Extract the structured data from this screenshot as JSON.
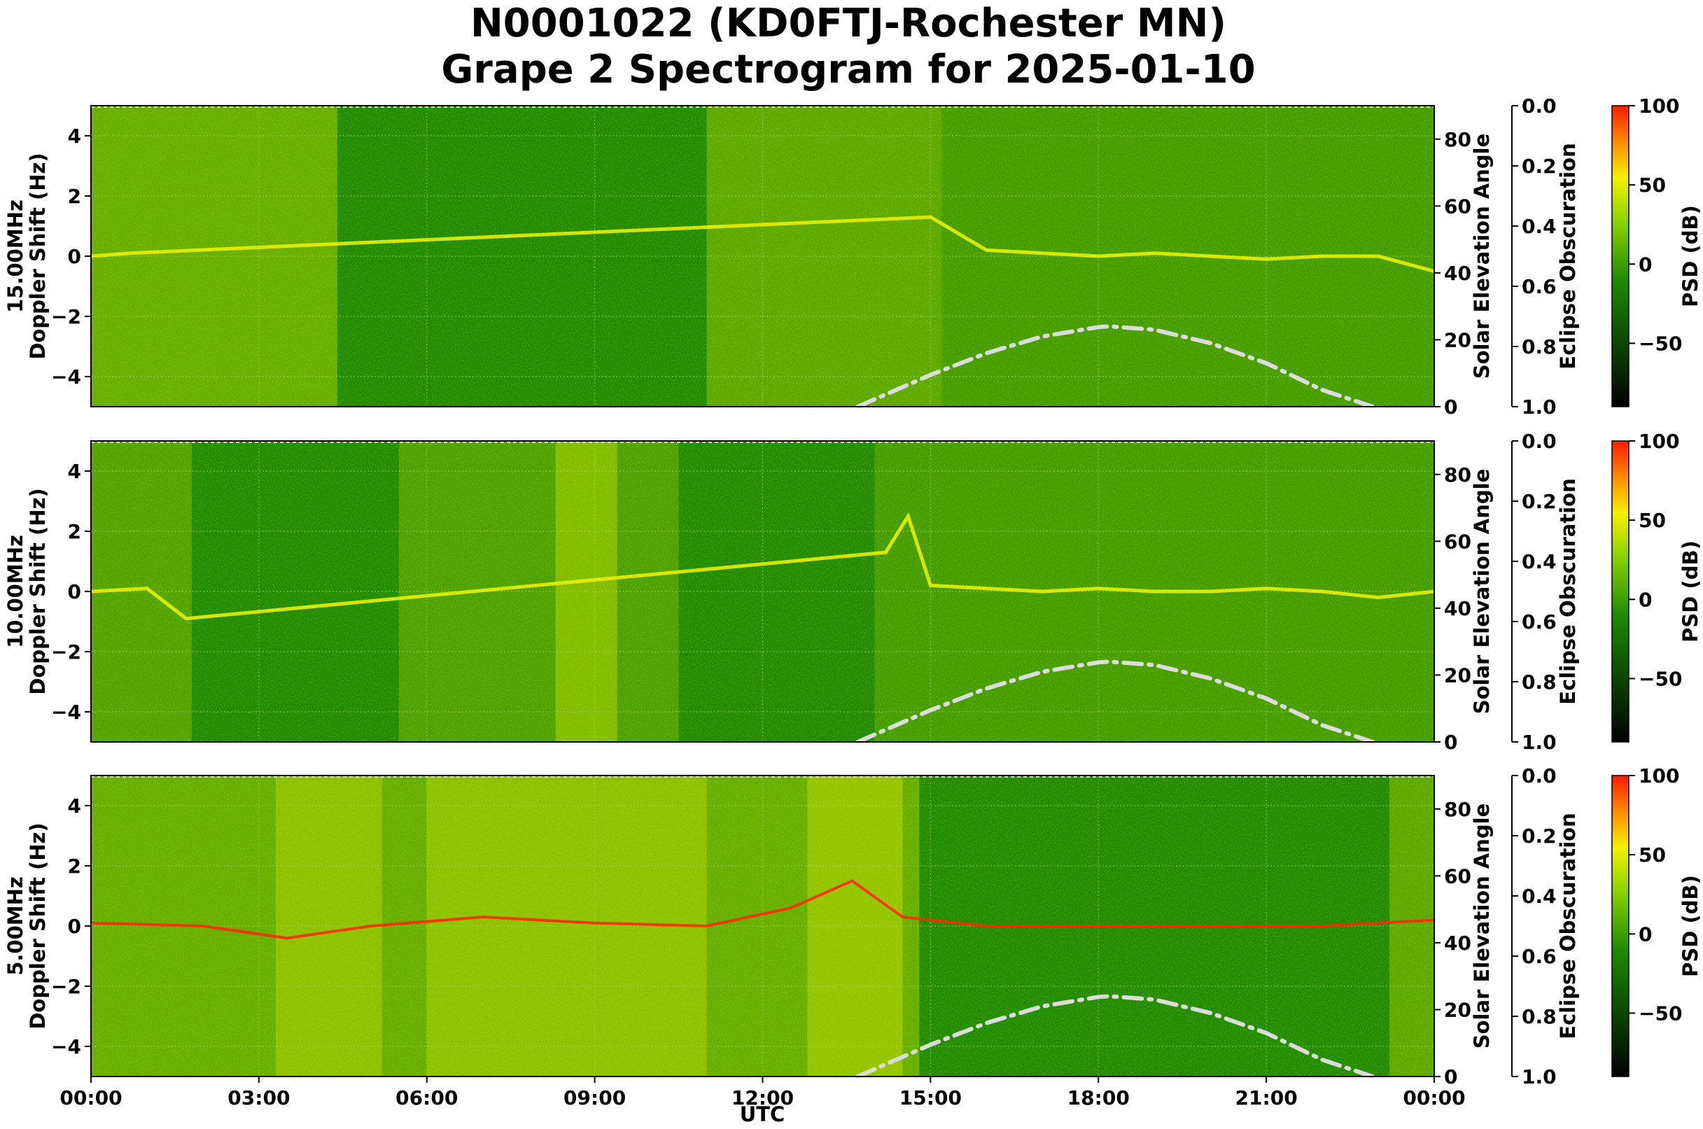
{
  "title_line1": "N0001022 (KD0FTJ-Rochester MN)",
  "title_line2": "Grape 2 Spectrogram for 2025-01-10",
  "xlabel": "UTC",
  "x_ticks": [
    "00:00",
    "03:00",
    "06:00",
    "09:00",
    "12:00",
    "15:00",
    "18:00",
    "21:00",
    "00:00"
  ],
  "colors": {
    "background_green": "#1f8a00",
    "noise_green": "#4c9f10",
    "signal_yellow": "#e8f000",
    "strong_red": "#ff2a00",
    "solar_curve": "#dcdcdc"
  },
  "chart_data": [
    {
      "type": "heatmap",
      "frequency_label": "15.00MHz",
      "ylabel": "15.00MHz\nDoppler Shift (Hz)",
      "ylabel_line1": "15.00MHz",
      "ylabel_line2": "Doppler Shift (Hz)",
      "ylim": [
        -5,
        5
      ],
      "y_ticks": [
        "4",
        "2",
        "0",
        "−2",
        "−4"
      ],
      "y_tick_values": [
        4,
        2,
        0,
        -2,
        -4
      ],
      "xlim_hours": [
        0,
        24
      ],
      "solar_axis_label": "Solar Elevation Angle",
      "solar_ylim": [
        0,
        90
      ],
      "solar_ticks": [
        "80",
        "60",
        "40",
        "20",
        "0"
      ],
      "solar_tick_values": [
        80,
        60,
        40,
        20,
        0
      ],
      "eclipse_label": "Eclipse Obscuration",
      "eclipse_ylim": [
        0,
        1
      ],
      "eclipse_ticks": [
        "0.0",
        "0.2",
        "0.4",
        "0.6",
        "0.8",
        "1.0"
      ],
      "eclipse_tick_values": [
        0,
        0.2,
        0.4,
        0.6,
        0.8,
        1.0
      ],
      "colorbar_label": "PSD (dB)",
      "colorbar_range": [
        -90,
        100
      ],
      "colorbar_ticks": [
        "100",
        "50",
        "0",
        "−50"
      ],
      "colorbar_tick_values": [
        100,
        50,
        0,
        -50
      ],
      "solar_elevation_curve": {
        "x_hours": [
          13.7,
          15,
          16,
          17,
          18,
          18.2,
          19,
          20,
          21,
          22,
          22.9
        ],
        "elev_deg": [
          0,
          9.5,
          16,
          21,
          23.8,
          24,
          23,
          19,
          13,
          5,
          0
        ]
      },
      "signal_trace": {
        "x_hours": [
          0,
          0.7,
          15.0,
          16,
          17,
          18,
          19,
          20,
          21,
          22,
          23,
          24
        ],
        "doppler_hz": [
          0,
          0.1,
          1.3,
          0.2,
          0.1,
          0,
          0.1,
          0,
          -0.1,
          0,
          0,
          -0.5
        ]
      }
    },
    {
      "type": "heatmap",
      "frequency_label": "10.00MHz",
      "ylabel": "10.00MHz\nDoppler Shift (Hz)",
      "ylabel_line1": "10.00MHz",
      "ylabel_line2": "Doppler Shift (Hz)",
      "ylim": [
        -5,
        5
      ],
      "y_ticks": [
        "4",
        "2",
        "0",
        "−2",
        "−4"
      ],
      "y_tick_values": [
        4,
        2,
        0,
        -2,
        -4
      ],
      "xlim_hours": [
        0,
        24
      ],
      "solar_axis_label": "Solar Elevation Angle",
      "solar_ylim": [
        0,
        90
      ],
      "solar_ticks": [
        "80",
        "60",
        "40",
        "20",
        "0"
      ],
      "solar_tick_values": [
        80,
        60,
        40,
        20,
        0
      ],
      "eclipse_label": "Eclipse Obscuration",
      "eclipse_ylim": [
        0,
        1
      ],
      "eclipse_ticks": [
        "0.0",
        "0.2",
        "0.4",
        "0.6",
        "0.8",
        "1.0"
      ],
      "eclipse_tick_values": [
        0,
        0.2,
        0.4,
        0.6,
        0.8,
        1.0
      ],
      "colorbar_label": "PSD (dB)",
      "colorbar_range": [
        -90,
        100
      ],
      "colorbar_ticks": [
        "100",
        "50",
        "0",
        "−50"
      ],
      "colorbar_tick_values": [
        100,
        50,
        0,
        -50
      ],
      "solar_elevation_curve": {
        "x_hours": [
          13.7,
          15,
          16,
          17,
          18,
          18.2,
          19,
          20,
          21,
          22,
          22.9
        ],
        "elev_deg": [
          0,
          9.5,
          16,
          21,
          23.8,
          24,
          23,
          19,
          13,
          5,
          0
        ]
      },
      "signal_trace": {
        "x_hours": [
          0,
          1.0,
          1.7,
          14.2,
          14.6,
          15,
          16,
          17,
          18,
          19,
          20,
          21,
          22,
          23,
          24
        ],
        "doppler_hz": [
          0,
          0.1,
          -0.9,
          1.3,
          2.5,
          0.2,
          0.1,
          0,
          0.1,
          0,
          0,
          0.1,
          0,
          -0.2,
          0
        ]
      }
    },
    {
      "type": "heatmap",
      "frequency_label": "5.00MHz",
      "ylabel": "5.00MHz\nDoppler Shift (Hz)",
      "ylabel_line1": "5.00MHz",
      "ylabel_line2": "Doppler Shift (Hz)",
      "ylim": [
        -5,
        5
      ],
      "y_ticks": [
        "4",
        "2",
        "0",
        "−2",
        "−4"
      ],
      "y_tick_values": [
        4,
        2,
        0,
        -2,
        -4
      ],
      "xlim_hours": [
        0,
        24
      ],
      "solar_axis_label": "Solar Elevation Angle",
      "solar_ylim": [
        0,
        90
      ],
      "solar_ticks": [
        "80",
        "60",
        "40",
        "20",
        "0"
      ],
      "solar_tick_values": [
        80,
        60,
        40,
        20,
        0
      ],
      "eclipse_label": "Eclipse Obscuration",
      "eclipse_ylim": [
        0,
        1
      ],
      "eclipse_ticks": [
        "0.0",
        "0.2",
        "0.4",
        "0.6",
        "0.8",
        "1.0"
      ],
      "eclipse_tick_values": [
        0,
        0.2,
        0.4,
        0.6,
        0.8,
        1.0
      ],
      "colorbar_label": "PSD (dB)",
      "colorbar_range": [
        -90,
        100
      ],
      "colorbar_ticks": [
        "100",
        "50",
        "0",
        "−50"
      ],
      "colorbar_tick_values": [
        100,
        50,
        0,
        -50
      ],
      "solar_elevation_curve": {
        "x_hours": [
          13.7,
          15,
          16,
          17,
          18,
          18.2,
          19,
          20,
          21,
          22,
          22.9
        ],
        "elev_deg": [
          0,
          9.5,
          16,
          21,
          23.8,
          24,
          23,
          19,
          13,
          5,
          0
        ]
      },
      "signal_trace": {
        "x_hours": [
          0,
          2,
          3.5,
          5,
          7,
          9,
          11,
          12.5,
          13.6,
          14.5,
          16,
          18,
          20,
          22,
          24
        ],
        "doppler_hz": [
          0.1,
          0,
          -0.4,
          0,
          0.3,
          0.1,
          0,
          0.6,
          1.5,
          0.3,
          0,
          0,
          0,
          0,
          0.2
        ]
      }
    }
  ]
}
